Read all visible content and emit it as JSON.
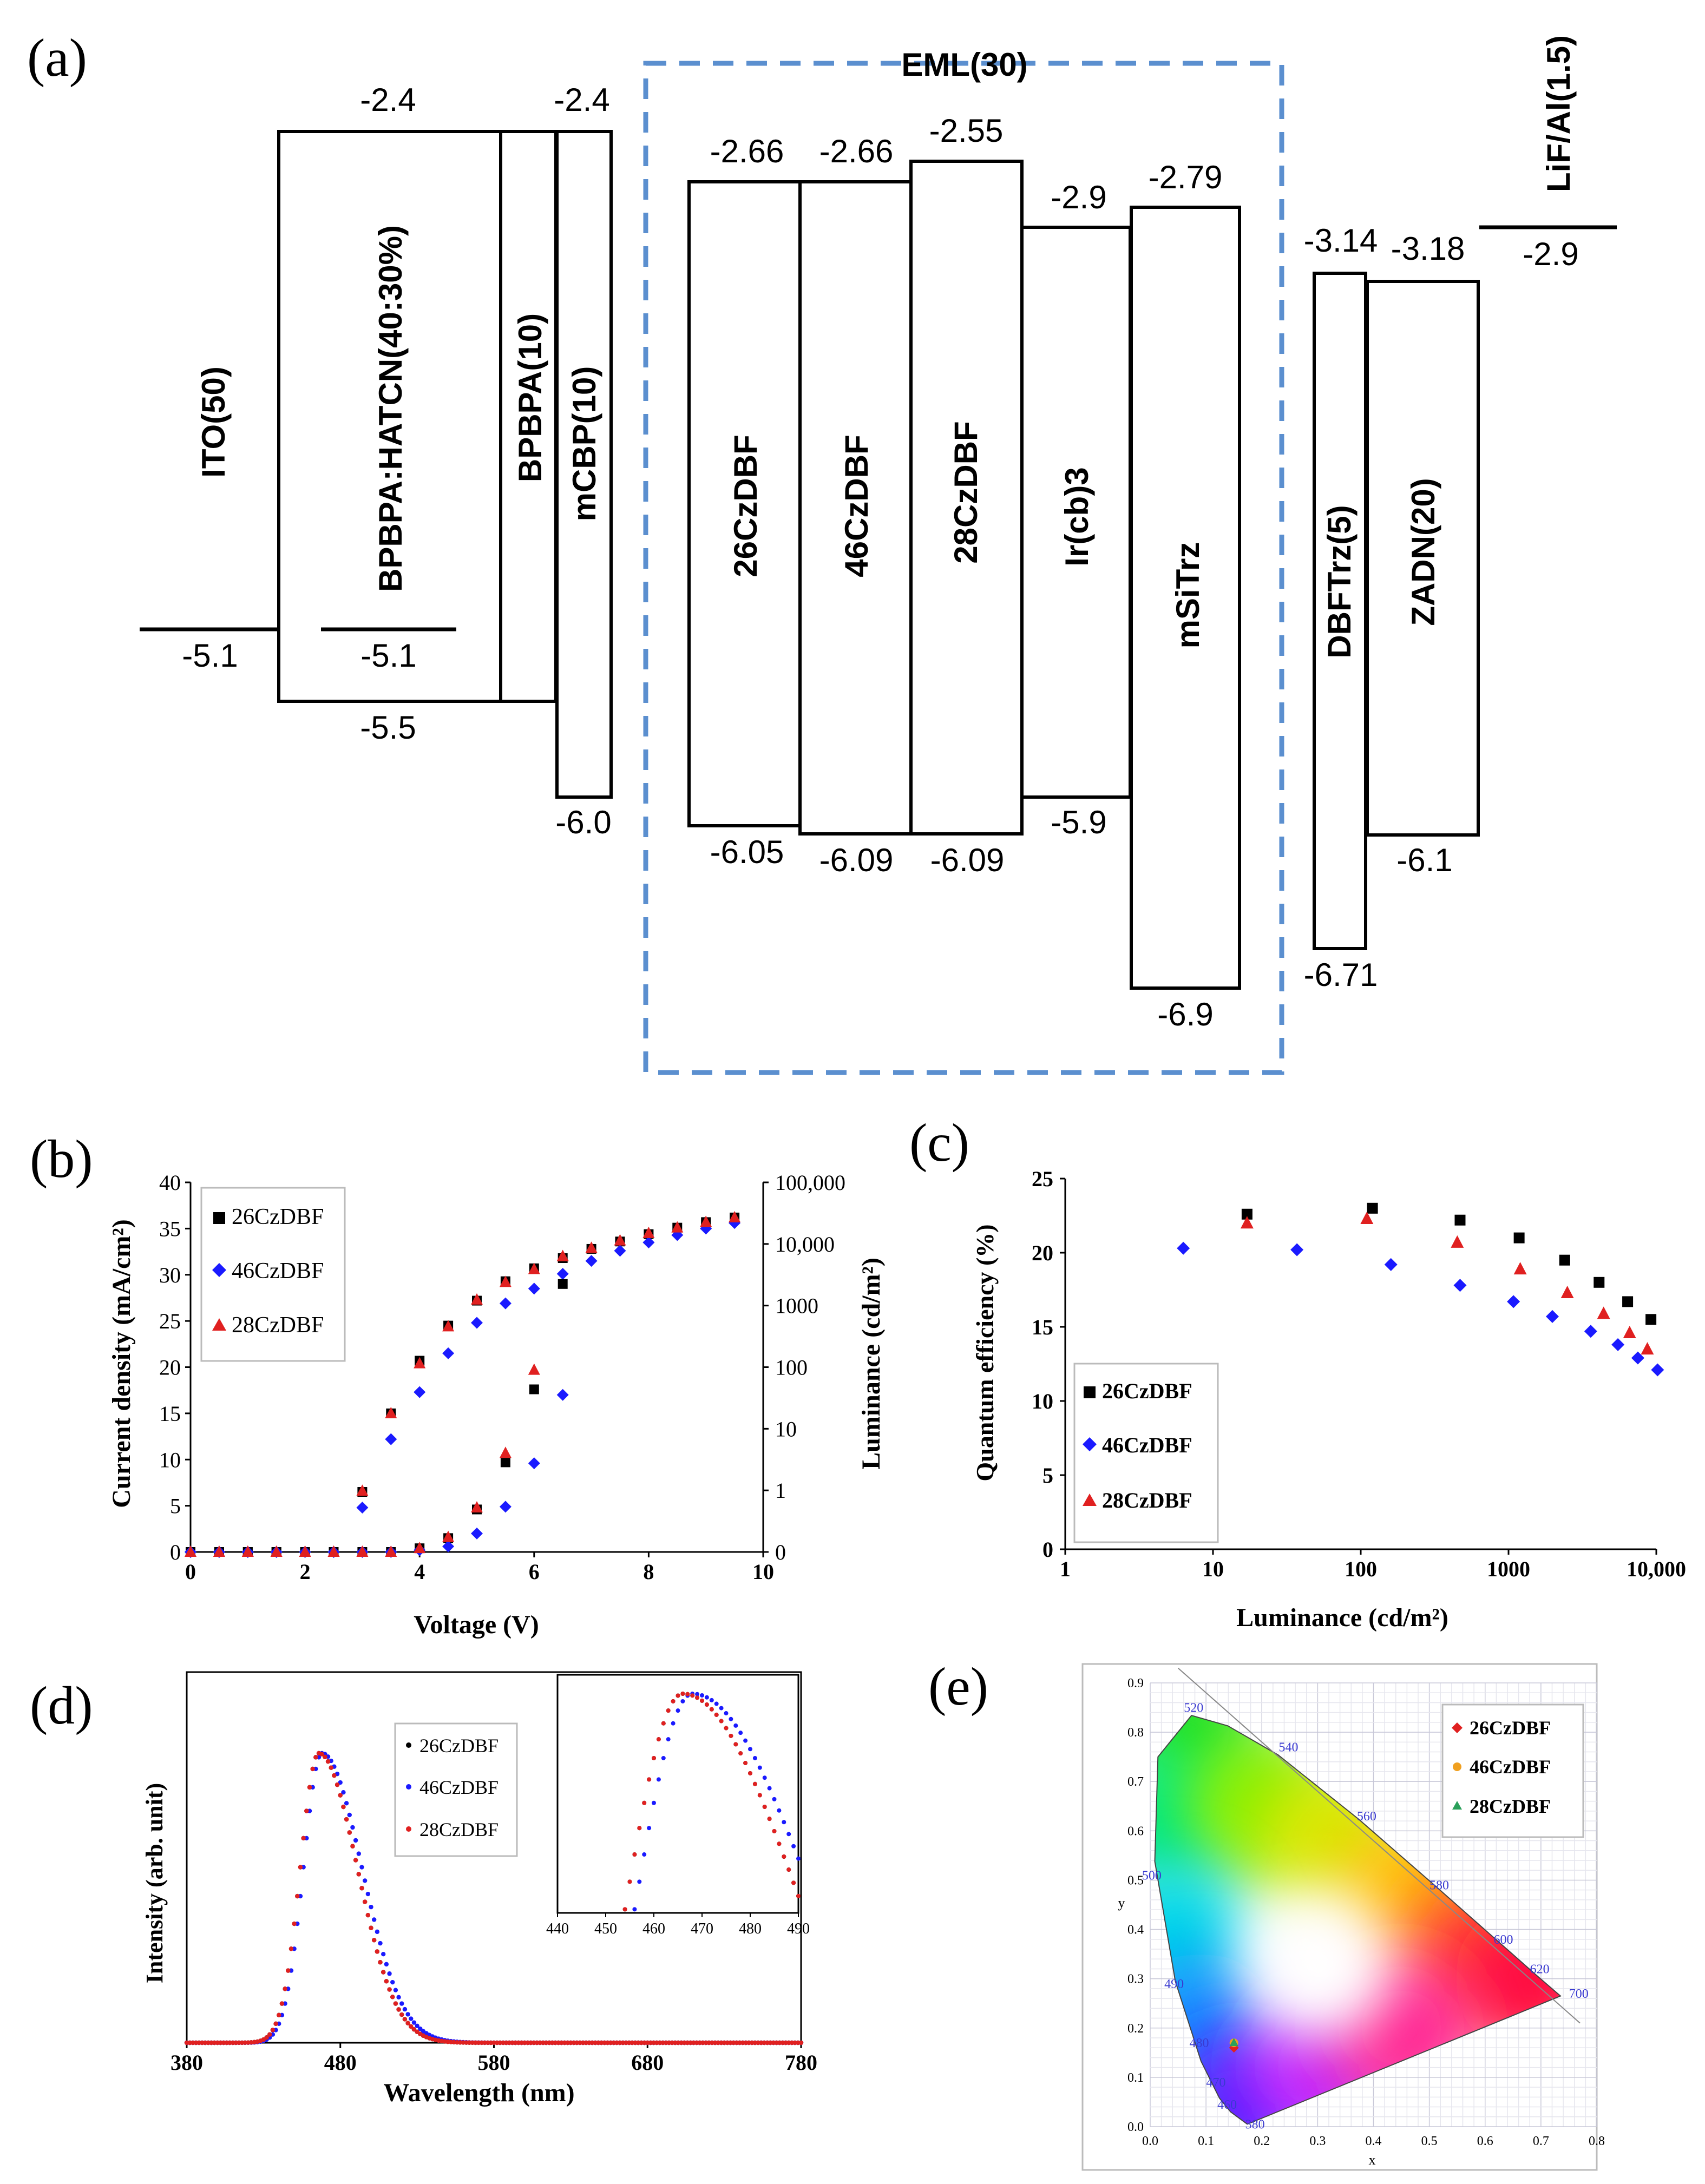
{
  "colors": {
    "s26": "#000000",
    "s46": "#1a1aff",
    "s28": "#e02020",
    "eml_border": "#5b8fcf",
    "cie_tick": "#3a3ad0",
    "leg26": "#e02020",
    "leg46": "#f0a020",
    "leg28": "#2aa05a"
  },
  "panel_labels": {
    "a": "(a)",
    "b": "(b)",
    "c": "(c)",
    "d": "(d)",
    "e": "(e)"
  },
  "series_names": [
    "26CzDBF",
    "46CzDBF",
    "28CzDBF"
  ],
  "chart_data": [
    {
      "panel": "a",
      "type": "energy-level-diagram",
      "eml_label": "EML(30)",
      "layers": [
        {
          "name": "ITO(50)",
          "lumo": null,
          "homo": -5.1,
          "lumo_label": "",
          "homo_label": "-5.1"
        },
        {
          "name": "BPBPA:HATCN(40:30%)",
          "lumo": -2.4,
          "homo": -5.5,
          "lumo_label": "-2.4",
          "homo_label": "-5.5",
          "inner_level_label": "-5.1"
        },
        {
          "name": "BPBPA(10)",
          "lumo": -2.4,
          "homo": -5.5,
          "lumo_label": "",
          "homo_label": ""
        },
        {
          "name": "mCBP(10)",
          "lumo": -2.4,
          "homo": -6.0,
          "lumo_label": "-2.4",
          "homo_label": "-6.0"
        },
        {
          "name": "26CzDBF",
          "lumo": -2.66,
          "homo": -6.05,
          "lumo_label": "-2.66",
          "homo_label": "-6.05"
        },
        {
          "name": "46CzDBF",
          "lumo": -2.66,
          "homo": -6.09,
          "lumo_label": "-2.66",
          "homo_label": "-6.09"
        },
        {
          "name": "28CzDBF",
          "lumo": -2.55,
          "homo": -6.09,
          "lumo_label": "-2.55",
          "homo_label": "-6.09"
        },
        {
          "name": "Ir(cb)3",
          "lumo": -2.9,
          "homo": -5.9,
          "lumo_label": "-2.9",
          "homo_label": "-5.9"
        },
        {
          "name": "mSiTrz",
          "lumo": -2.79,
          "homo": -6.9,
          "lumo_label": "-2.79",
          "homo_label": "-6.9"
        },
        {
          "name": "DBFTrz(5)",
          "lumo": -3.14,
          "homo": -6.71,
          "lumo_label": "-3.14",
          "homo_label": "-6.71"
        },
        {
          "name": "ZADN(20)",
          "lumo": -3.18,
          "homo": -6.1,
          "lumo_label": "-3.18",
          "homo_label": "-6.1"
        },
        {
          "name": "LiF/Al(1.5)",
          "lumo": -2.9,
          "homo": null,
          "lumo_label": "-2.9",
          "homo_label": ""
        }
      ]
    },
    {
      "panel": "b",
      "type": "scatter",
      "xlabel": "Voltage (V)",
      "ylabel": "Current density (mA/cm²)",
      "y2label": "Luminance (cd/m²)",
      "xlim": [
        0,
        10
      ],
      "ylim": [
        0,
        40
      ],
      "x_ticks": [
        "0",
        "2",
        "4",
        "6",
        "8",
        "10"
      ],
      "y_ticks": [
        "0",
        "5",
        "10",
        "15",
        "20",
        "25",
        "30",
        "35",
        "40"
      ],
      "y2_ticks": [
        "0",
        "1",
        "10",
        "100",
        "1000",
        "10,000",
        "100,000"
      ],
      "legend": [
        "26CzDBF",
        "46CzDBF",
        "28CzDBF"
      ],
      "x": [
        0,
        0.5,
        1,
        1.5,
        2,
        2.5,
        3,
        3.5,
        4,
        4.5,
        5,
        5.5,
        6,
        6.5,
        7,
        7.5,
        8,
        8.5,
        9,
        9.5
      ],
      "luminance_series": [
        {
          "name": "26CzDBF",
          "values": [
            0,
            0,
            0,
            0,
            0,
            0,
            6.5,
            15,
            20.7,
            24.5,
            27.2,
            29.3,
            30.7,
            31.8,
            32.8,
            33.6,
            34.4,
            35.1,
            35.7,
            36.2
          ]
        },
        {
          "name": "46CzDBF",
          "values": [
            0,
            0,
            0,
            0,
            0,
            0,
            4.8,
            12.2,
            17.3,
            21.5,
            24.8,
            26.9,
            28.5,
            30.1,
            31.5,
            32.6,
            33.5,
            34.3,
            35,
            35.6
          ]
        },
        {
          "name": "28CzDBF",
          "values": [
            0,
            0,
            0,
            0,
            0,
            0,
            6.6,
            15,
            20.4,
            24.4,
            27.3,
            29.2,
            30.6,
            32,
            32.9,
            33.7,
            34.5,
            35.1,
            35.7,
            36.2
          ]
        }
      ],
      "current_x": [
        0,
        0.5,
        1,
        1.5,
        2,
        2.5,
        3,
        3.5,
        4,
        4.5,
        5,
        5.5,
        6,
        6.5
      ],
      "current_series": [
        {
          "name": "26CzDBF",
          "values": [
            0,
            0,
            0,
            0,
            0,
            0,
            0,
            0,
            0.4,
            1.5,
            4.6,
            9.7,
            17.6,
            29
          ]
        },
        {
          "name": "46CzDBF",
          "values": [
            0,
            0,
            0,
            0,
            0,
            0,
            0,
            0,
            0.2,
            0.6,
            2,
            4.9,
            9.6,
            17
          ]
        },
        {
          "name": "28CzDBF",
          "values": [
            0,
            0,
            0,
            0,
            0,
            0,
            0,
            0,
            0.4,
            1.6,
            4.8,
            10.7,
            19.7,
            32
          ]
        }
      ]
    },
    {
      "panel": "c",
      "type": "scatter",
      "xscale": "log",
      "xlabel": "Luminance (cd/m²)",
      "ylabel": "Quantum efficiency (%)",
      "xlim": [
        1,
        10000
      ],
      "ylim": [
        0,
        25
      ],
      "x_ticks": [
        "1",
        "10",
        "100",
        "1000",
        "10,000"
      ],
      "y_ticks": [
        "0",
        "5",
        "10",
        "15",
        "20",
        "25"
      ],
      "legend": [
        "26CzDBF",
        "46CzDBF",
        "28CzDBF"
      ],
      "series": [
        {
          "name": "26CzDBF",
          "x": [
            17,
            120,
            470,
            1180,
            2400,
            4100,
            6400,
            9200
          ],
          "values": [
            22.6,
            23,
            22.2,
            21,
            19.5,
            18,
            16.7,
            15.5
          ]
        },
        {
          "name": "46CzDBF",
          "x": [
            6.3,
            37,
            160,
            470,
            1080,
            1980,
            3600,
            5500,
            7500,
            10200
          ],
          "values": [
            20.3,
            20.2,
            19.2,
            17.8,
            16.7,
            15.7,
            14.7,
            13.8,
            12.9,
            12.1
          ]
        },
        {
          "name": "28CzDBF",
          "x": [
            17,
            110,
            450,
            1200,
            2500,
            4400,
            6600,
            8700
          ],
          "values": [
            22,
            22.3,
            20.7,
            18.9,
            17.3,
            15.9,
            14.6,
            13.5
          ]
        }
      ]
    },
    {
      "panel": "d",
      "type": "line",
      "xlabel": "Wavelength (nm)",
      "ylabel": "Intensity (arb. unit)",
      "xlim": [
        380,
        780
      ],
      "x_ticks": [
        "380",
        "480",
        "580",
        "680",
        "780"
      ],
      "legend": [
        "26CzDBF",
        "46CzDBF",
        "28CzDBF"
      ],
      "series": [
        {
          "name": "26CzDBF",
          "peak_nm": 466,
          "sigma_left": 12,
          "sigma_right": 25
        },
        {
          "name": "46CzDBF",
          "peak_nm": 468,
          "sigma_left": 12,
          "sigma_right": 26
        },
        {
          "name": "28CzDBF",
          "peak_nm": 466,
          "sigma_left": 12,
          "sigma_right": 25
        }
      ],
      "inset": {
        "xlim": [
          440,
          490
        ],
        "x_ticks": [
          "440",
          "450",
          "460",
          "470",
          "480",
          "490"
        ]
      }
    },
    {
      "panel": "e",
      "type": "cie-chromaticity",
      "xlabel": "x",
      "ylabel": "y",
      "xlim": [
        0,
        0.8
      ],
      "ylim": [
        0,
        0.9
      ],
      "x_ticks": [
        "0.0",
        "0.1",
        "0.2",
        "0.3",
        "0.4",
        "0.5",
        "0.6",
        "0.7",
        "0.8"
      ],
      "y_ticks": [
        "0.0",
        "0.1",
        "0.2",
        "0.3",
        "0.4",
        "0.5",
        "0.6",
        "0.7",
        "0.8",
        "0.9"
      ],
      "wavelength_labels": [
        "380",
        "460",
        "470",
        "480",
        "490",
        "500",
        "520",
        "540",
        "560",
        "580",
        "600",
        "620",
        "700"
      ],
      "legend": [
        "26CzDBF",
        "46CzDBF",
        "28CzDBF"
      ],
      "points": [
        {
          "name": "26CzDBF",
          "x": 0.15,
          "y": 0.16
        },
        {
          "name": "46CzDBF",
          "x": 0.15,
          "y": 0.17
        },
        {
          "name": "28CzDBF",
          "x": 0.15,
          "y": 0.17
        }
      ]
    }
  ]
}
